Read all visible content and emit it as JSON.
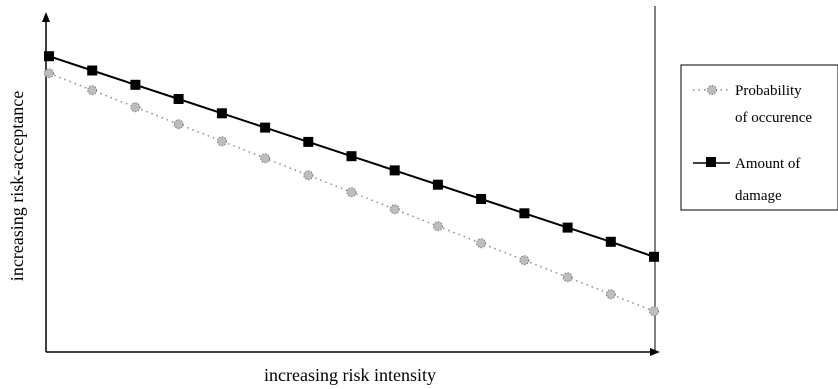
{
  "chart_data": {
    "type": "line",
    "title": "",
    "xlabel": "increasing risk intensity",
    "ylabel": "increasing risk-acceptance",
    "x": [
      0,
      1,
      2,
      3,
      4,
      5,
      6,
      7,
      8,
      9,
      10,
      11,
      12,
      13,
      14
    ],
    "xlim": [
      0,
      14
    ],
    "ylim": [
      0,
      100
    ],
    "grid": false,
    "legend_position": "right",
    "series": [
      {
        "name": "Probability of occurence",
        "values": [
          82,
          77,
          72,
          67,
          62,
          57,
          52,
          47,
          42,
          37,
          32,
          27,
          22,
          17,
          12
        ],
        "color": "#8c8c8c",
        "line_style": "dotted",
        "marker": "dotted-circle"
      },
      {
        "name": "Amount of damage",
        "values": [
          87,
          82.8,
          78.6,
          74.4,
          70.2,
          66,
          61.8,
          57.6,
          53.4,
          49.2,
          45,
          40.8,
          36.6,
          32.4,
          28
        ],
        "color": "#000000",
        "line_style": "solid",
        "marker": "square"
      }
    ],
    "legend": {
      "entries": [
        {
          "line1": "Probability",
          "line2": "of occurence"
        },
        {
          "line1": "Amount of",
          "line2": "damage"
        }
      ]
    }
  }
}
